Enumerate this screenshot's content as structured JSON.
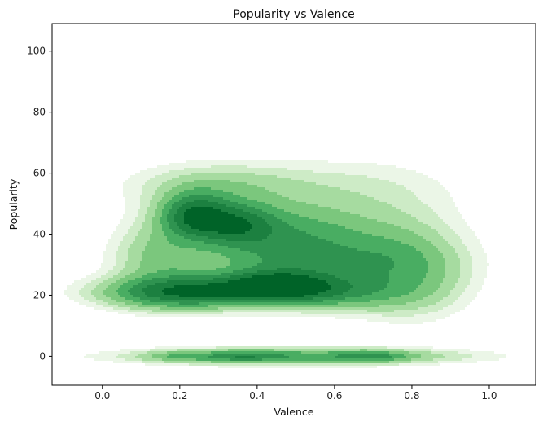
{
  "chart_data": {
    "type": "kde-contour",
    "title": "Popularity vs Valence",
    "xlabel": "Valence",
    "ylabel": "Popularity",
    "xlim": [
      -0.13,
      1.12
    ],
    "ylim": [
      -9.5,
      109
    ],
    "xticks": [
      0.0,
      0.2,
      0.4,
      0.6,
      0.8,
      1.0
    ],
    "xtick_labels": [
      "0.0",
      "0.2",
      "0.4",
      "0.6",
      "0.8",
      "1.0"
    ],
    "yticks": [
      0,
      20,
      40,
      60,
      80,
      100
    ],
    "ytick_labels": [
      "0",
      "20",
      "40",
      "60",
      "80",
      "100"
    ],
    "grid": false,
    "colormap": "Greens",
    "level_colors": [
      "#ebf6e7",
      "#cdebc6",
      "#a6dba0",
      "#7bc77d",
      "#49ad62",
      "#2f9350",
      "#1c8040",
      "#006328"
    ],
    "density_components": [
      {
        "x": 0.22,
        "y": 21,
        "sx": 0.14,
        "sy": 3.5,
        "w": 0.9
      },
      {
        "x": 0.45,
        "y": 23,
        "sx": 0.1,
        "sy": 3.5,
        "w": 0.95
      },
      {
        "x": 0.6,
        "y": 21,
        "sx": 0.12,
        "sy": 4,
        "w": 0.45
      },
      {
        "x": 0.8,
        "y": 24,
        "sx": 0.1,
        "sy": 8,
        "w": 0.25
      },
      {
        "x": 0.24,
        "y": 46,
        "sx": 0.06,
        "sy": 5,
        "w": 0.85
      },
      {
        "x": 0.35,
        "y": 43,
        "sx": 0.07,
        "sy": 5,
        "w": 0.7
      },
      {
        "x": 0.5,
        "y": 40,
        "sx": 0.12,
        "sy": 7,
        "w": 0.45
      },
      {
        "x": 0.75,
        "y": 36,
        "sx": 0.12,
        "sy": 9,
        "w": 0.28
      },
      {
        "x": 0.3,
        "y": 56,
        "sx": 0.15,
        "sy": 5,
        "w": 0.25
      },
      {
        "x": 0.65,
        "y": 55,
        "sx": 0.18,
        "sy": 7,
        "w": 0.13
      },
      {
        "x": 0.15,
        "y": 33,
        "sx": 0.08,
        "sy": 9,
        "w": 0.3
      },
      {
        "x": 0.5,
        "y": 31,
        "sx": 0.2,
        "sy": 5,
        "w": 0.35
      },
      {
        "x": 0.5,
        "y": 0,
        "sx": 0.27,
        "sy": 1.8,
        "w": 0.55
      },
      {
        "x": 0.36,
        "y": 0,
        "sx": 0.06,
        "sy": 1.3,
        "w": 0.3
      },
      {
        "x": 0.7,
        "y": 0,
        "sx": 0.06,
        "sy": 1.3,
        "w": 0.3
      },
      {
        "x": 0.2,
        "y": 0,
        "sx": 0.06,
        "sy": 1.3,
        "w": 0.2
      }
    ],
    "levels": [
      0.07,
      0.13,
      0.2,
      0.3,
      0.43,
      0.58,
      0.75,
      0.95
    ]
  }
}
